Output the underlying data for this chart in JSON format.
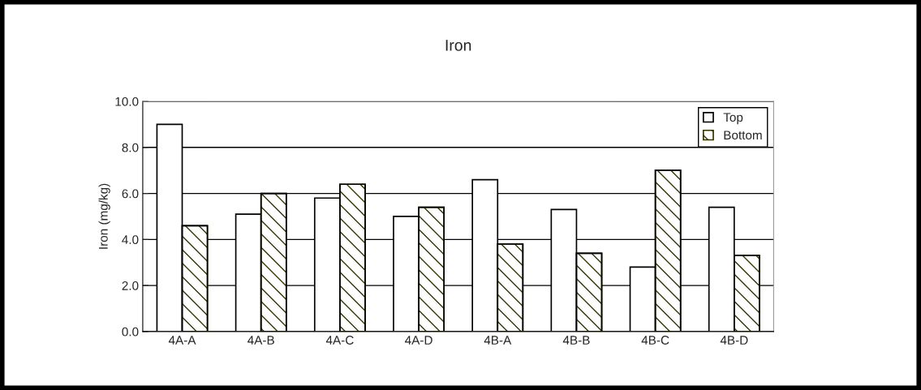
{
  "chart_data": {
    "type": "bar",
    "title": "Iron",
    "ylabel": "Iron (mg/kg)",
    "categories": [
      "4A-A",
      "4A-B",
      "4A-C",
      "4A-D",
      "4B-A",
      "4B-B",
      "4B-C",
      "4B-D"
    ],
    "series": [
      {
        "name": "Top",
        "color": "#ffffff",
        "values": [
          9.0,
          5.1,
          5.8,
          5.0,
          6.6,
          5.3,
          2.8,
          5.4
        ]
      },
      {
        "name": "Bottom",
        "color": "#333300",
        "values": [
          4.6,
          6.0,
          6.4,
          5.4,
          3.8,
          3.4,
          7.0,
          3.3
        ]
      }
    ],
    "ylim": [
      0,
      10
    ],
    "yticks": [
      {
        "value": 0,
        "label": "0.0"
      },
      {
        "value": 2,
        "label": "2.0"
      },
      {
        "value": 4,
        "label": "4.0"
      },
      {
        "value": 6,
        "label": "6.0"
      },
      {
        "value": 8,
        "label": "8.0"
      },
      {
        "value": 10,
        "label": "10.0"
      }
    ],
    "grid": "y",
    "legend": "top right"
  }
}
